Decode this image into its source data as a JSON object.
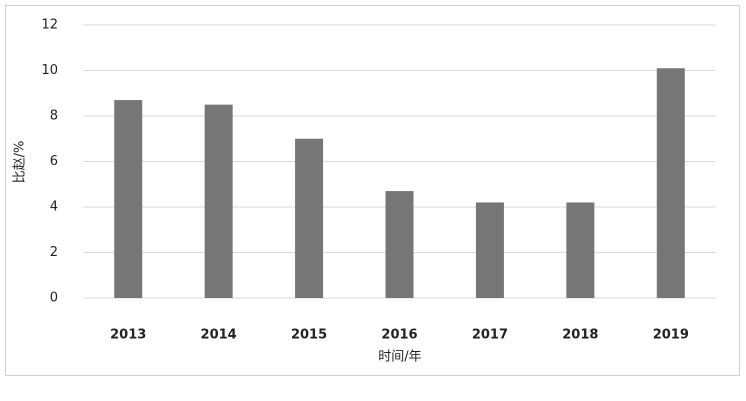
{
  "chart_data": {
    "type": "bar",
    "x_label": "时间/年",
    "y_label": "比赵/%",
    "categories": [
      "2013",
      "2014",
      "2015",
      "2016",
      "2017",
      "2018",
      "2019"
    ],
    "values": [
      8.7,
      8.5,
      7.0,
      4.7,
      4.2,
      4.2,
      10.1
    ],
    "color": "#767676",
    "ylim": [
      0,
      12
    ],
    "yticks": [
      0,
      2,
      4,
      6,
      8,
      10,
      12
    ],
    "grid": true
  }
}
